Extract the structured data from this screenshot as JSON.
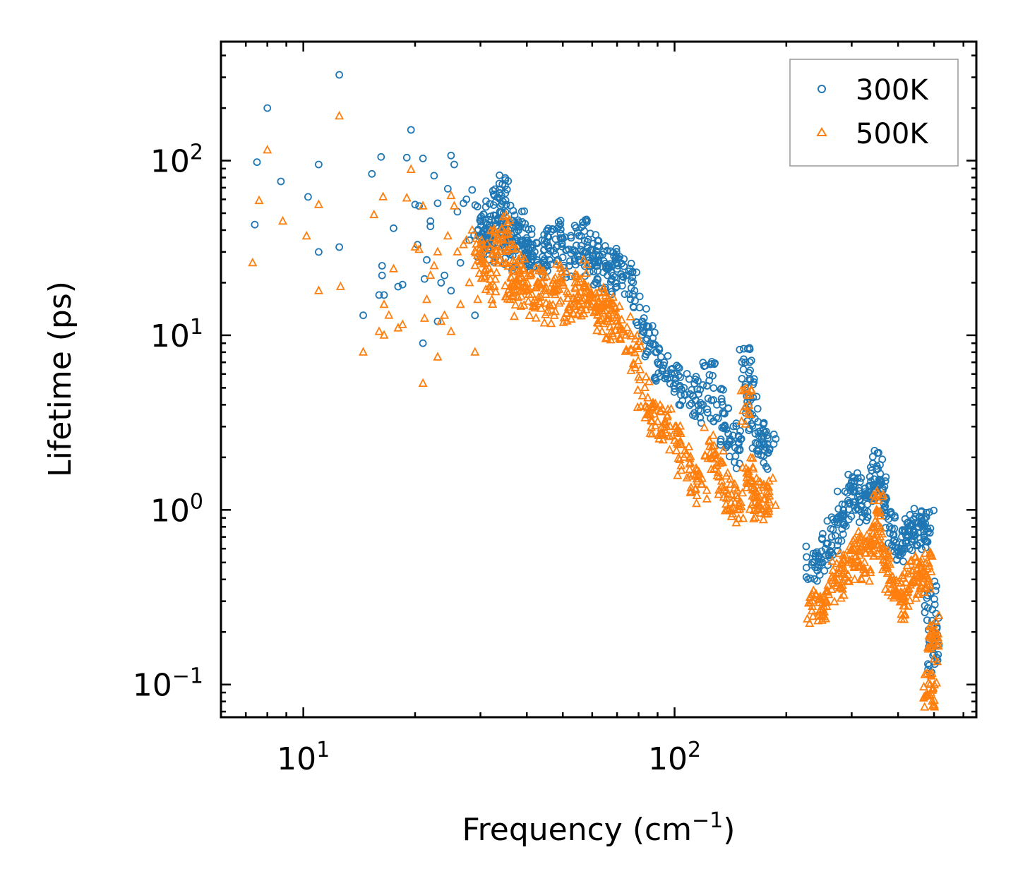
{
  "chart_data": {
    "type": "scatter",
    "xscale": "log",
    "yscale": "log",
    "xlim": [
      6.0,
      650
    ],
    "ylim": [
      0.065,
      480
    ],
    "xlabel": "Frequency (cm",
    "xlabel_sup": "−1",
    "xlabel_end": ")",
    "ylabel": "Lifetime (ps)",
    "x_ticks": [
      {
        "value": 10,
        "base": "10",
        "exp": "1"
      },
      {
        "value": 100,
        "base": "10",
        "exp": "2"
      }
    ],
    "y_ticks": [
      {
        "value": 0.1,
        "base": "10",
        "exp": "−1"
      },
      {
        "value": 1,
        "base": "10",
        "exp": "0"
      },
      {
        "value": 10,
        "base": "10",
        "exp": "1"
      },
      {
        "value": 100,
        "base": "10",
        "exp": "2"
      }
    ],
    "legend_position": "top-right",
    "series": [
      {
        "name": "300K",
        "marker": "circle",
        "color": "#1f77b4",
        "points": [
          [
            7.4,
            43
          ],
          [
            7.5,
            98
          ],
          [
            8.0,
            200
          ],
          [
            8.7,
            76
          ],
          [
            10.3,
            62
          ],
          [
            11.0,
            95
          ],
          [
            11.0,
            30
          ],
          [
            12.5,
            310
          ],
          [
            12.5,
            32
          ],
          [
            14.5,
            13
          ],
          [
            15.3,
            84
          ],
          [
            16.0,
            17
          ],
          [
            16.2,
            105
          ],
          [
            16.3,
            25
          ],
          [
            16.3,
            22
          ],
          [
            16.5,
            17
          ],
          [
            17.5,
            41
          ],
          [
            18.0,
            19
          ],
          [
            18.5,
            19.5
          ],
          [
            19.0,
            104
          ],
          [
            19.5,
            150
          ],
          [
            20.0,
            56
          ],
          [
            20.3,
            33
          ],
          [
            20.5,
            55
          ],
          [
            21.0,
            9
          ],
          [
            21.0,
            103
          ],
          [
            21.2,
            21
          ],
          [
            21.5,
            27
          ],
          [
            22.0,
            45
          ],
          [
            22.0,
            42
          ],
          [
            22.5,
            82
          ],
          [
            23.0,
            57
          ],
          [
            23.0,
            12
          ],
          [
            23.5,
            20
          ],
          [
            24.0,
            22
          ],
          [
            24.5,
            69
          ],
          [
            25.0,
            18
          ],
          [
            25.0,
            107
          ],
          [
            25.5,
            95
          ],
          [
            26.0,
            51
          ],
          [
            26.5,
            26
          ],
          [
            27.0,
            57
          ],
          [
            27.5,
            60
          ],
          [
            28.0,
            35
          ],
          [
            28.5,
            68
          ],
          [
            29.0,
            13
          ],
          [
            29.5,
            28
          ],
          [
            30.0,
            47
          ],
          [
            30.5,
            34
          ],
          [
            31.0,
            44
          ],
          [
            32.0,
            33
          ],
          [
            33.0,
            58
          ],
          [
            33.5,
            41
          ],
          [
            34.0,
            55
          ],
          [
            34.5,
            38
          ],
          [
            35.0,
            65
          ],
          [
            36.0,
            29
          ],
          [
            37.0,
            44
          ],
          [
            38.0,
            40
          ],
          [
            39.0,
            35
          ],
          [
            40.0,
            32
          ],
          [
            41.0,
            28
          ],
          [
            42.0,
            30
          ],
          [
            44.0,
            35
          ],
          [
            46.0,
            27
          ],
          [
            48.0,
            32
          ],
          [
            50.0,
            36
          ],
          [
            52.0,
            25
          ],
          [
            54.0,
            30
          ],
          [
            56.0,
            37
          ],
          [
            58.0,
            28
          ],
          [
            60.0,
            31
          ],
          [
            62.0,
            25
          ],
          [
            64.0,
            29
          ],
          [
            66.0,
            22
          ],
          [
            68.0,
            25
          ],
          [
            70.0,
            24
          ],
          [
            74.0,
            22
          ],
          [
            78.0,
            18
          ],
          [
            82.0,
            12
          ],
          [
            86.0,
            9
          ],
          [
            90.0,
            7
          ],
          [
            95.0,
            6
          ],
          [
            100.0,
            6
          ],
          [
            106.0,
            5
          ],
          [
            112.0,
            4.5
          ],
          [
            118.0,
            4
          ],
          [
            124.0,
            5.5
          ],
          [
            130.0,
            4
          ],
          [
            136.0,
            3
          ],
          [
            142.0,
            2.5
          ],
          [
            148.0,
            2.2
          ],
          [
            155.0,
            7
          ],
          [
            158.0,
            4.5
          ],
          [
            162.0,
            3.5
          ],
          [
            168.0,
            2.8
          ],
          [
            174.0,
            2.4
          ],
          [
            180.0,
            2.2
          ],
          [
            235.0,
            0.5
          ],
          [
            245.0,
            0.48
          ],
          [
            255.0,
            0.6
          ],
          [
            265.0,
            0.7
          ],
          [
            275.0,
            0.85
          ],
          [
            285.0,
            1.0
          ],
          [
            295.0,
            1.1
          ],
          [
            305.0,
            1.3
          ],
          [
            315.0,
            1.2
          ],
          [
            325.0,
            1.0
          ],
          [
            335.0,
            1.2
          ],
          [
            345.0,
            1.5
          ],
          [
            350.0,
            1.7
          ],
          [
            358.0,
            1.4
          ],
          [
            368.0,
            1.0
          ],
          [
            380.0,
            0.8
          ],
          [
            395.0,
            0.65
          ],
          [
            410.0,
            0.6
          ],
          [
            425.0,
            0.7
          ],
          [
            440.0,
            0.75
          ],
          [
            455.0,
            0.8
          ],
          [
            470.0,
            0.75
          ],
          [
            480.0,
            0.78
          ],
          [
            490.0,
            0.33
          ],
          [
            495.0,
            0.2
          ],
          [
            500.0,
            0.15
          ]
        ]
      },
      {
        "name": "500K",
        "marker": "triangle",
        "color": "#ff7f0e",
        "points": [
          [
            7.3,
            26
          ],
          [
            7.6,
            59
          ],
          [
            8.0,
            115
          ],
          [
            8.8,
            45
          ],
          [
            10.2,
            37
          ],
          [
            11.0,
            56
          ],
          [
            11.0,
            18
          ],
          [
            12.5,
            180
          ],
          [
            12.6,
            19
          ],
          [
            14.5,
            8
          ],
          [
            15.5,
            49
          ],
          [
            16.0,
            10.5
          ],
          [
            16.4,
            62
          ],
          [
            16.5,
            15
          ],
          [
            16.5,
            10
          ],
          [
            17.0,
            13
          ],
          [
            17.5,
            24
          ],
          [
            18.0,
            11
          ],
          [
            18.5,
            11.5
          ],
          [
            19.0,
            61
          ],
          [
            19.5,
            89
          ],
          [
            20.0,
            32
          ],
          [
            20.5,
            31
          ],
          [
            21.0,
            5.3
          ],
          [
            21.0,
            55
          ],
          [
            21.2,
            12.5
          ],
          [
            21.5,
            16
          ],
          [
            22.0,
            22
          ],
          [
            22.5,
            25
          ],
          [
            23.0,
            30
          ],
          [
            23.0,
            7.5
          ],
          [
            23.5,
            12
          ],
          [
            24.0,
            13
          ],
          [
            24.5,
            37
          ],
          [
            25.0,
            10.5
          ],
          [
            25.0,
            63
          ],
          [
            25.5,
            55
          ],
          [
            26.0,
            30
          ],
          [
            26.5,
            15
          ],
          [
            27.0,
            33
          ],
          [
            27.5,
            35
          ],
          [
            28.0,
            20
          ],
          [
            28.5,
            40
          ],
          [
            29.0,
            8
          ],
          [
            29.5,
            16
          ],
          [
            30.0,
            28
          ],
          [
            31.0,
            26
          ],
          [
            32.0,
            19
          ],
          [
            33.0,
            33
          ],
          [
            34.0,
            32
          ],
          [
            35.0,
            38
          ],
          [
            36.0,
            16
          ],
          [
            37.0,
            26
          ],
          [
            38.0,
            23
          ],
          [
            39.0,
            20
          ],
          [
            40.0,
            18
          ],
          [
            42.0,
            16
          ],
          [
            44.0,
            20
          ],
          [
            46.0,
            15
          ],
          [
            48.0,
            18
          ],
          [
            50.0,
            20
          ],
          [
            52.0,
            14
          ],
          [
            54.0,
            16
          ],
          [
            56.0,
            21
          ],
          [
            58.0,
            15
          ],
          [
            60.0,
            17
          ],
          [
            62.0,
            13
          ],
          [
            64.0,
            15
          ],
          [
            66.0,
            12
          ],
          [
            68.0,
            13
          ],
          [
            70.0,
            12
          ],
          [
            74.0,
            10
          ],
          [
            78.0,
            8
          ],
          [
            82.0,
            4.5
          ],
          [
            86.0,
            3.5
          ],
          [
            90.0,
            3.2
          ],
          [
            95.0,
            3.0
          ],
          [
            100.0,
            2.5
          ],
          [
            106.0,
            2.0
          ],
          [
            112.0,
            1.6
          ],
          [
            118.0,
            1.4
          ],
          [
            124.0,
            2.5
          ],
          [
            130.0,
            1.8
          ],
          [
            136.0,
            1.3
          ],
          [
            142.0,
            1.1
          ],
          [
            148.0,
            1.0
          ],
          [
            155.0,
            3.9
          ],
          [
            158.0,
            1.6
          ],
          [
            162.0,
            1.2
          ],
          [
            168.0,
            1.1
          ],
          [
            174.0,
            1.15
          ],
          [
            180.0,
            1.2
          ],
          [
            235.0,
            0.28
          ],
          [
            245.0,
            0.26
          ],
          [
            255.0,
            0.3
          ],
          [
            265.0,
            0.35
          ],
          [
            275.0,
            0.4
          ],
          [
            285.0,
            0.45
          ],
          [
            295.0,
            0.5
          ],
          [
            305.0,
            0.6
          ],
          [
            315.0,
            0.55
          ],
          [
            325.0,
            0.5
          ],
          [
            335.0,
            0.6
          ],
          [
            345.0,
            0.8
          ],
          [
            350.0,
            1.0
          ],
          [
            358.0,
            0.7
          ],
          [
            368.0,
            0.5
          ],
          [
            380.0,
            0.38
          ],
          [
            395.0,
            0.32
          ],
          [
            410.0,
            0.3
          ],
          [
            425.0,
            0.35
          ],
          [
            440.0,
            0.4
          ],
          [
            455.0,
            0.42
          ],
          [
            470.0,
            0.45
          ],
          [
            480.0,
            0.46
          ],
          [
            488.0,
            0.1
          ],
          [
            490.0,
            0.09
          ],
          [
            495.0,
            0.2
          ],
          [
            500.0,
            0.17
          ]
        ]
      }
    ]
  }
}
